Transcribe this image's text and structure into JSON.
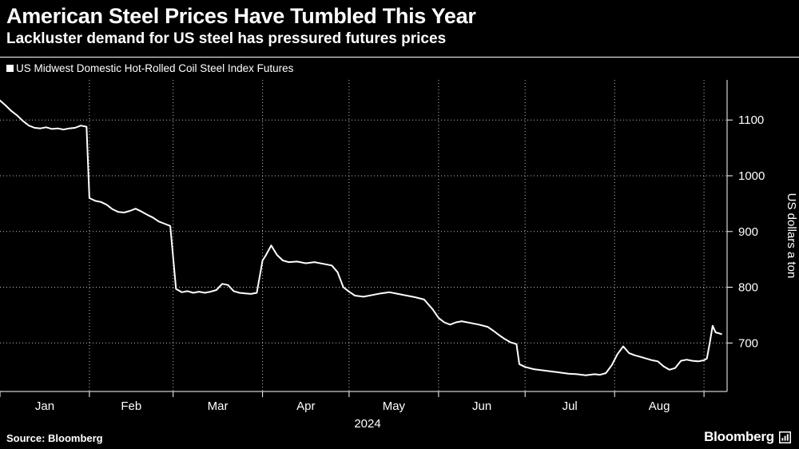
{
  "header": {
    "title": "American Steel Prices Have Tumbled This Year",
    "subtitle": "Lackluster demand for US steel has pressured futures prices"
  },
  "legend": {
    "label": "US Midwest Domestic Hot-Rolled Coil Steel Index Futures",
    "marker_color": "#ffffff"
  },
  "footer": {
    "source": "Source: Bloomberg",
    "logo_text": "Bloomberg"
  },
  "chart_data": {
    "type": "line",
    "title": "American Steel Prices Have Tumbled This Year",
    "subtitle": "Lackluster demand for US steel has pressured futures prices",
    "background": "#000000",
    "grid": {
      "dotted": true,
      "color": "#ffffff"
    },
    "y": {
      "title": "US dollars a ton",
      "domain": [
        613,
        1172
      ],
      "ticks": [
        700,
        800,
        900,
        1000,
        1100
      ],
      "axis_side": "right"
    },
    "x": {
      "unit": "days from Jan 1, 2024",
      "domain": [
        0,
        252
      ],
      "year_label": "2024",
      "month_ticks": [
        {
          "label": "Jan",
          "start": 0,
          "mid": 15.5
        },
        {
          "label": "Feb",
          "start": 31,
          "mid": 45.5
        },
        {
          "label": "Mar",
          "start": 60,
          "mid": 75.5
        },
        {
          "label": "Apr",
          "start": 91,
          "mid": 106
        },
        {
          "label": "May",
          "start": 121,
          "mid": 136.5
        },
        {
          "label": "Jun",
          "start": 152,
          "mid": 167
        },
        {
          "label": "Jul",
          "start": 182,
          "mid": 197.5
        },
        {
          "label": "Aug",
          "start": 213,
          "mid": 228.5
        },
        {
          "label": "",
          "start": 244,
          "mid": null
        }
      ]
    },
    "series": [
      {
        "name": "US Midwest Domestic Hot-Rolled Coil Steel Index Futures",
        "color": "#ffffff",
        "points": [
          [
            0,
            1135
          ],
          [
            2,
            1126
          ],
          [
            4,
            1116
          ],
          [
            6,
            1108
          ],
          [
            8,
            1098
          ],
          [
            10,
            1090
          ],
          [
            12,
            1086
          ],
          [
            14,
            1085
          ],
          [
            16,
            1087
          ],
          [
            18,
            1084
          ],
          [
            20,
            1085
          ],
          [
            22,
            1083
          ],
          [
            24,
            1085
          ],
          [
            26,
            1086
          ],
          [
            28,
            1090
          ],
          [
            30,
            1088
          ],
          [
            31,
            960
          ],
          [
            33,
            955
          ],
          [
            35,
            953
          ],
          [
            37,
            948
          ],
          [
            39,
            940
          ],
          [
            41,
            935
          ],
          [
            43,
            934
          ],
          [
            45,
            937
          ],
          [
            47,
            941
          ],
          [
            49,
            936
          ],
          [
            51,
            930
          ],
          [
            53,
            925
          ],
          [
            55,
            918
          ],
          [
            57,
            914
          ],
          [
            59,
            910
          ],
          [
            61,
            797
          ],
          [
            63,
            791
          ],
          [
            65,
            793
          ],
          [
            67,
            790
          ],
          [
            69,
            792
          ],
          [
            71,
            790
          ],
          [
            73,
            792
          ],
          [
            75,
            795
          ],
          [
            77,
            806
          ],
          [
            79,
            804
          ],
          [
            81,
            793
          ],
          [
            83,
            790
          ],
          [
            85,
            789
          ],
          [
            87,
            788
          ],
          [
            89,
            790
          ],
          [
            91,
            848
          ],
          [
            92,
            856
          ],
          [
            94,
            875
          ],
          [
            96,
            858
          ],
          [
            98,
            848
          ],
          [
            100,
            845
          ],
          [
            103,
            846
          ],
          [
            106,
            843
          ],
          [
            109,
            845
          ],
          [
            112,
            842
          ],
          [
            115,
            839
          ],
          [
            117,
            827
          ],
          [
            119,
            800
          ],
          [
            121,
            792
          ],
          [
            123,
            785
          ],
          [
            126,
            783
          ],
          [
            129,
            786
          ],
          [
            132,
            789
          ],
          [
            135,
            791
          ],
          [
            138,
            788
          ],
          [
            141,
            785
          ],
          [
            144,
            782
          ],
          [
            147,
            778
          ],
          [
            150,
            760
          ],
          [
            152,
            745
          ],
          [
            154,
            737
          ],
          [
            156,
            733
          ],
          [
            158,
            737
          ],
          [
            160,
            739
          ],
          [
            163,
            736
          ],
          [
            166,
            733
          ],
          [
            169,
            729
          ],
          [
            171,
            722
          ],
          [
            173,
            714
          ],
          [
            175,
            707
          ],
          [
            177,
            701
          ],
          [
            179,
            698
          ],
          [
            180,
            662
          ],
          [
            182,
            657
          ],
          [
            185,
            653
          ],
          [
            188,
            651
          ],
          [
            191,
            649
          ],
          [
            194,
            647
          ],
          [
            197,
            645
          ],
          [
            200,
            644
          ],
          [
            203,
            642
          ],
          [
            206,
            644
          ],
          [
            208,
            643
          ],
          [
            210,
            646
          ],
          [
            212,
            660
          ],
          [
            214,
            680
          ],
          [
            216,
            694
          ],
          [
            218,
            682
          ],
          [
            220,
            678
          ],
          [
            222,
            675
          ],
          [
            224,
            672
          ],
          [
            226,
            669
          ],
          [
            228,
            667
          ],
          [
            230,
            658
          ],
          [
            232,
            652
          ],
          [
            234,
            655
          ],
          [
            236,
            668
          ],
          [
            238,
            670
          ],
          [
            240,
            668
          ],
          [
            242,
            667
          ],
          [
            244,
            669
          ],
          [
            245,
            672
          ],
          [
            246,
            700
          ],
          [
            247,
            731
          ],
          [
            248,
            719
          ],
          [
            250,
            716
          ]
        ]
      }
    ]
  }
}
